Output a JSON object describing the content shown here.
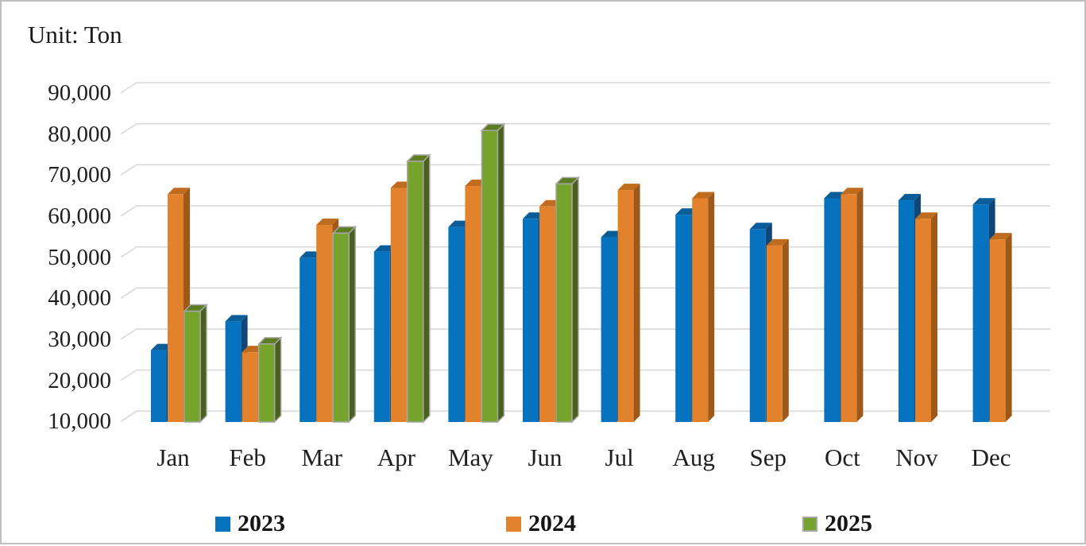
{
  "title": "Unit: Ton",
  "chart_data": {
    "type": "bar",
    "style": "3d-clustered-column",
    "title": "Unit: Ton",
    "unit": "Ton",
    "xlabel": "",
    "ylabel": "",
    "ylim": [
      10000,
      90000
    ],
    "ytick_step": 10000,
    "y_ticks": [
      "90,000",
      "80,000",
      "70,000",
      "60,000",
      "50,000",
      "40,000",
      "30,000",
      "20,000",
      "10,000"
    ],
    "grid": "horizontal",
    "legend_position": "bottom",
    "categories": [
      "Jan",
      "Feb",
      "Mar",
      "Apr",
      "May",
      "Jun",
      "Jul",
      "Aug",
      "Sep",
      "Oct",
      "Nov",
      "Dec"
    ],
    "series": [
      {
        "name": "2023",
        "color": "#0772BE",
        "color_top": "#0B5D99",
        "color_side": "#0F4677",
        "values": [
          27500,
          34500,
          50000,
          51500,
          57500,
          59500,
          55000,
          60500,
          57000,
          64500,
          64000,
          63000
        ]
      },
      {
        "name": "2024",
        "color": "#E2822D",
        "color_top": "#C06C1E",
        "color_side": "#9E5818",
        "values": [
          65500,
          27000,
          58000,
          67000,
          67500,
          62500,
          66500,
          64500,
          53000,
          65500,
          59500,
          54500
        ]
      },
      {
        "name": "2025",
        "color": "#76A32C",
        "color_top": "#5C7D22",
        "color_side": "#48611C",
        "outline": "#A6A6A6",
        "values": [
          37000,
          29000,
          56000,
          73500,
          81000,
          68000,
          null,
          null,
          null,
          null,
          null,
          null
        ]
      }
    ],
    "colors": {
      "gridline": "#D9D9D9",
      "text": "#1f1f1f",
      "page_border": "#BFBFBF",
      "background": "#FFFFFF"
    }
  }
}
